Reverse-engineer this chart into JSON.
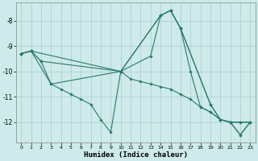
{
  "xlabel": "Humidex (Indice chaleur)",
  "background_color": "#ceeaea",
  "grid_color": "#aacccc",
  "line_color": "#2a7a6a",
  "xlim": [
    -0.5,
    23.5
  ],
  "ylim": [
    -12.8,
    -7.3
  ],
  "yticks": [
    -12,
    -11,
    -10,
    -9,
    -8
  ],
  "xticks": [
    0,
    1,
    2,
    3,
    4,
    5,
    6,
    7,
    8,
    9,
    10,
    11,
    12,
    13,
    14,
    15,
    16,
    17,
    18,
    19,
    20,
    21,
    22,
    23
  ],
  "series": [
    {
      "x": [
        0,
        1,
        2,
        10,
        11,
        12,
        13,
        14,
        15,
        16,
        17,
        18,
        19,
        20,
        21,
        22,
        23
      ],
      "y": [
        -9.3,
        -9.2,
        -9.6,
        -10.0,
        -10.3,
        -10.4,
        -10.5,
        -10.6,
        -10.7,
        -10.9,
        -11.1,
        -11.4,
        -11.6,
        -11.9,
        -12.0,
        -12.0,
        -12.0
      ]
    },
    {
      "x": [
        0,
        1,
        3,
        4,
        5,
        6,
        7,
        8,
        9,
        10,
        13,
        14,
        15,
        16,
        19,
        20,
        21,
        22,
        23
      ],
      "y": [
        -9.3,
        -9.2,
        -10.5,
        -10.7,
        -10.9,
        -11.1,
        -11.3,
        -11.9,
        -12.4,
        -10.0,
        -9.4,
        -7.8,
        -7.6,
        -8.3,
        -11.3,
        -11.9,
        -12.0,
        -12.5,
        -12.0
      ]
    },
    {
      "x": [
        0,
        1,
        10,
        14,
        15,
        16,
        19,
        20,
        21,
        22,
        23
      ],
      "y": [
        -9.3,
        -9.2,
        -10.0,
        -7.8,
        -7.6,
        -8.3,
        -11.3,
        -11.9,
        -12.0,
        -12.5,
        -12.0
      ]
    },
    {
      "x": [
        0,
        1,
        2,
        3,
        10,
        14,
        15,
        16,
        17,
        18,
        19,
        20,
        21,
        22,
        23
      ],
      "y": [
        -9.3,
        -9.2,
        -9.6,
        -10.5,
        -10.0,
        -7.8,
        -7.6,
        -8.3,
        -10.0,
        -11.4,
        -11.6,
        -11.9,
        -12.0,
        -12.0,
        -12.0
      ]
    }
  ]
}
